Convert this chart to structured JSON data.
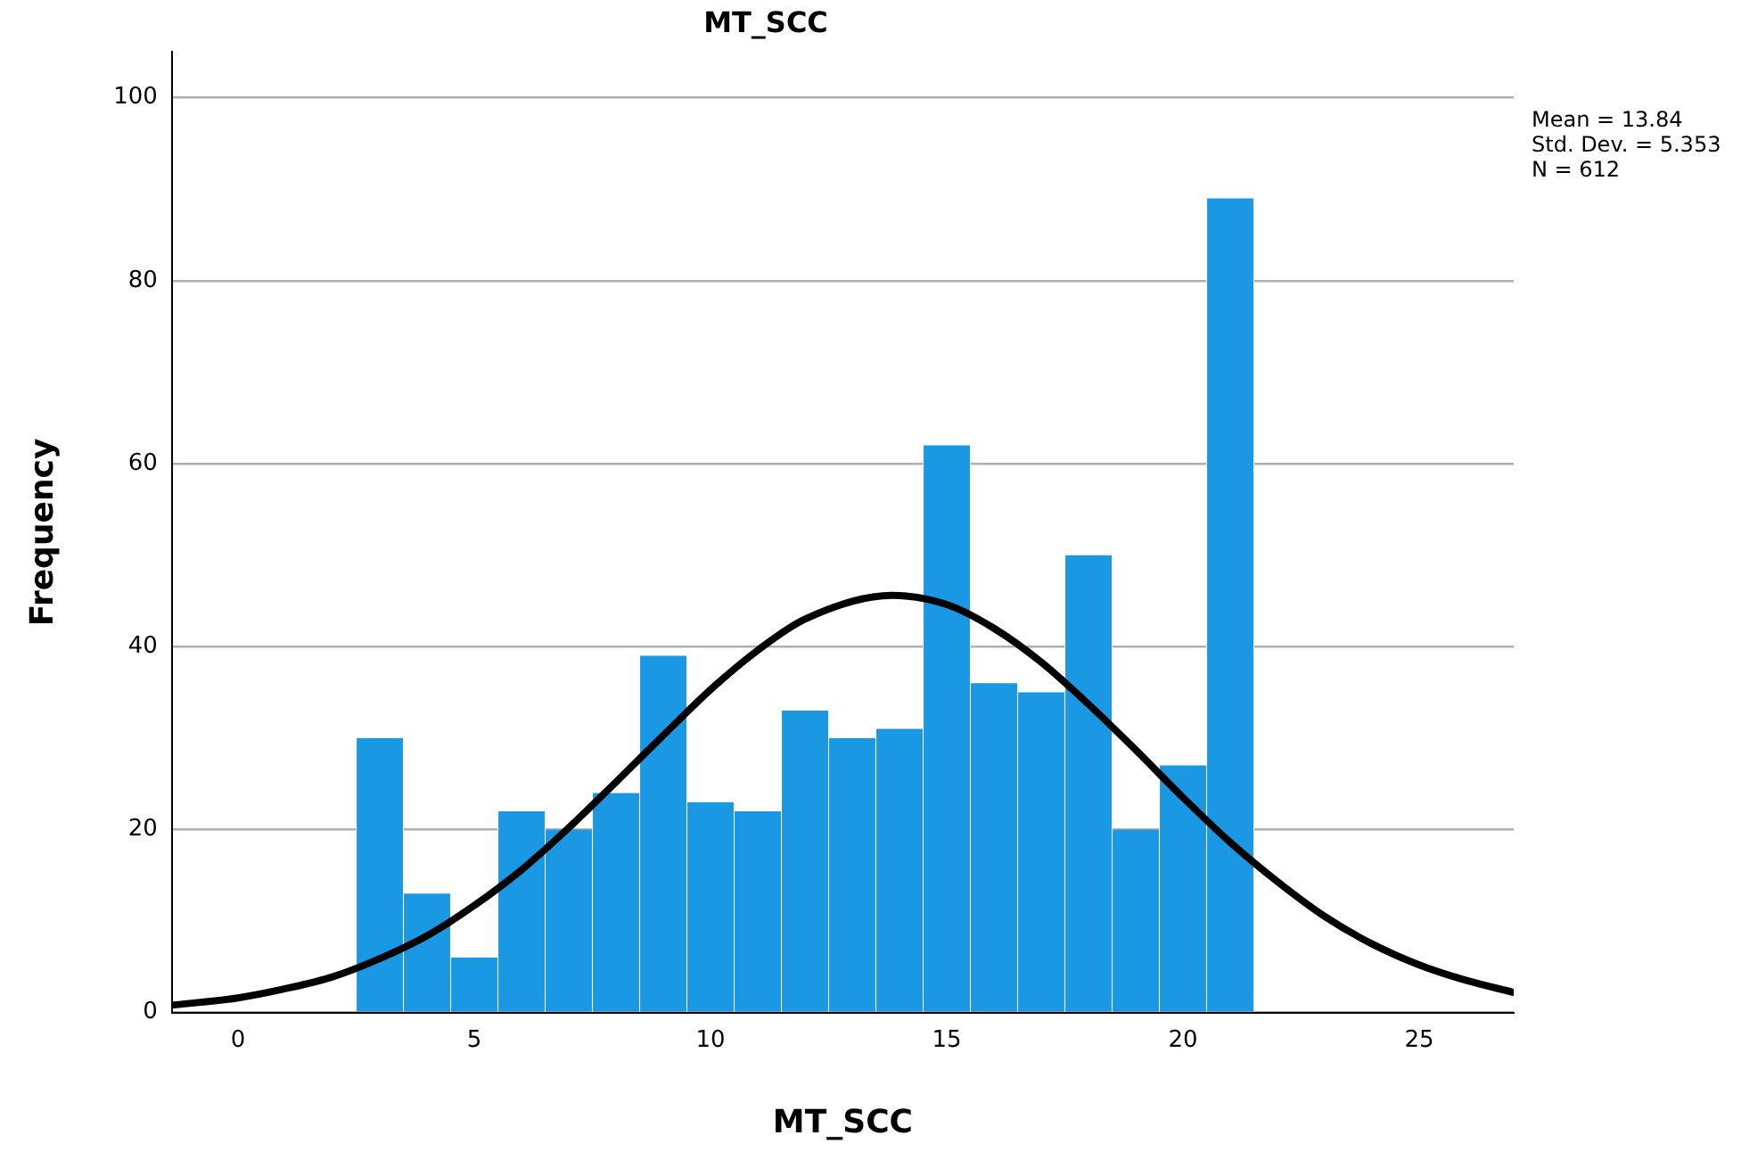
{
  "chart_data": {
    "type": "histogram",
    "title": "MT_SCC",
    "xlabel": "MT_SCC",
    "ylabel": "Frequency",
    "bins": [
      2.5,
      3.5,
      4.5,
      5.5,
      6.5,
      7.5,
      8.5,
      9.5,
      10.5,
      11.5,
      12.5,
      13.5,
      14.5,
      15.5,
      16.5,
      17.5,
      18.5,
      19.5,
      20.5,
      21.5
    ],
    "values": [
      30,
      13,
      6,
      22,
      20,
      24,
      39,
      23,
      22,
      33,
      30,
      31,
      62,
      36,
      35,
      50,
      20,
      27,
      89
    ],
    "color": "#1b98e3",
    "series": [
      {
        "type": "line",
        "color": "#000000",
        "x": [
          -1.4,
          0,
          1,
          2,
          3,
          4,
          5,
          6,
          7,
          8,
          9,
          10,
          11,
          12,
          13.84,
          15,
          16,
          17,
          18,
          19,
          20,
          21,
          22,
          23,
          24,
          25,
          26,
          27
        ],
        "values": [
          0.8,
          1.6,
          2.6,
          3.9,
          5.9,
          8.4,
          11.7,
          15.6,
          20.2,
          25.2,
          30.3,
          35.3,
          39.6,
          43.0,
          45.6,
          44.6,
          42.0,
          38.3,
          33.7,
          28.7,
          23.5,
          18.6,
          14.3,
          10.5,
          7.5,
          5.2,
          3.5,
          2.2
        ]
      }
    ],
    "xlim": [
      -1.4,
      27
    ],
    "xticks": [
      0,
      5,
      10,
      15,
      20,
      25
    ],
    "ylim": [
      0,
      105
    ],
    "yticks": [
      0,
      20,
      40,
      60,
      80,
      100
    ],
    "grid": "y",
    "marker": "none",
    "line_style": "solid",
    "annotations": [
      "Mean = 13.84",
      "Std. Dev. = 5.353",
      "N = 612"
    ]
  }
}
